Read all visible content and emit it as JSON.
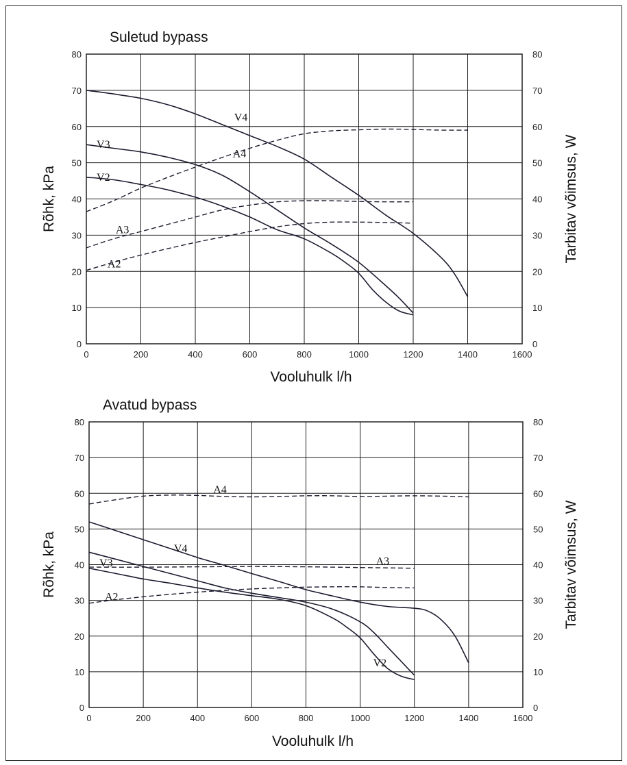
{
  "chart_data": [
    {
      "type": "line",
      "title": "Suletud bypass",
      "xlabel": "Vooluhulk  l/h",
      "ylabel": "Rõhk,  kPa",
      "ylabel_right": "Tarbitav võimsus,  W",
      "xlim": [
        0,
        1600
      ],
      "ylim": [
        0,
        80
      ],
      "ylim_right": [
        0,
        80
      ],
      "x_ticks": [
        "0",
        "200",
        "400",
        "600",
        "800",
        "1000",
        "1200",
        "1400",
        "1600"
      ],
      "y_ticks": [
        "0",
        "10",
        "20",
        "30",
        "40",
        "50",
        "60",
        "70",
        "80"
      ],
      "grid": true,
      "series": [
        {
          "name": "V4",
          "style": "solid",
          "label_at": [
            495,
            62.5
          ],
          "x": [
            0,
            100,
            200,
            300,
            400,
            500,
            600,
            700,
            800,
            900,
            1000,
            1100,
            1200,
            1300,
            1350,
            1400
          ],
          "y": [
            70,
            69,
            67.8,
            66,
            63.5,
            60.5,
            57.5,
            54.5,
            51,
            46,
            41,
            35.5,
            30.5,
            24,
            19.5,
            13
          ]
        },
        {
          "name": "V3",
          "style": "solid",
          "label_at": [
            -10,
            55
          ],
          "x": [
            0,
            100,
            200,
            300,
            400,
            500,
            600,
            700,
            800,
            900,
            1000,
            1100,
            1150,
            1200
          ],
          "y": [
            55,
            54,
            53,
            51.5,
            49.5,
            46.5,
            42,
            37,
            32,
            27.5,
            22.5,
            16,
            12.5,
            8.5
          ]
        },
        {
          "name": "V2",
          "style": "solid",
          "label_at": [
            -10,
            46
          ],
          "x": [
            0,
            100,
            200,
            300,
            400,
            500,
            600,
            700,
            800,
            900,
            950,
            1000,
            1050,
            1100,
            1150,
            1200
          ],
          "y": [
            46,
            45.3,
            44,
            42.5,
            40.5,
            38,
            35,
            31.5,
            29,
            25,
            22.5,
            19.5,
            15,
            11.5,
            9,
            8
          ]
        },
        {
          "name": "A4",
          "style": "dashed",
          "label_at": [
            490,
            52.5
          ],
          "x": [
            0,
            100,
            200,
            300,
            400,
            500,
            600,
            700,
            800,
            900,
            1000,
            1100,
            1200,
            1300,
            1400
          ],
          "y": [
            36.5,
            39.5,
            43,
            46,
            48.8,
            51.5,
            54,
            56.2,
            58,
            58.8,
            59.1,
            59.3,
            59.2,
            59,
            59
          ]
        },
        {
          "name": "A3",
          "style": "dashed",
          "label_at": [
            60,
            31.5
          ],
          "x": [
            0,
            100,
            200,
            300,
            400,
            500,
            600,
            700,
            800,
            900,
            1000,
            1100,
            1200
          ],
          "y": [
            26.5,
            29,
            31,
            33,
            35,
            37,
            38.3,
            39.2,
            39.5,
            39.5,
            39.3,
            39.2,
            39.2
          ]
        },
        {
          "name": "A2",
          "style": "dashed",
          "label_at": [
            30,
            22
          ],
          "x": [
            0,
            100,
            200,
            300,
            400,
            500,
            600,
            700,
            800,
            900,
            1000,
            1100,
            1200
          ],
          "y": [
            20.3,
            22.5,
            24.5,
            26.3,
            28,
            29.5,
            31,
            32.3,
            33.2,
            33.6,
            33.6,
            33.5,
            33.3
          ]
        }
      ]
    },
    {
      "type": "line",
      "title": "Avatud bypass",
      "xlabel": "Vooluhulk  l/h",
      "ylabel": "Rõhk,  kPa",
      "ylabel_right": "Tarbitav võimsus,  W",
      "xlim": [
        0,
        1600
      ],
      "ylim": [
        0,
        80
      ],
      "ylim_right": [
        0,
        80
      ],
      "x_ticks": [
        "0",
        "200",
        "400",
        "600",
        "800",
        "1000",
        "1200",
        "1400",
        "1600"
      ],
      "y_ticks": [
        "0",
        "10",
        "20",
        "30",
        "40",
        "50",
        "60",
        "70",
        "80"
      ],
      "grid": true,
      "series": [
        {
          "name": "A4",
          "style": "dashed",
          "label_at": [
            410,
            61
          ],
          "x": [
            0,
            100,
            200,
            300,
            400,
            500,
            600,
            700,
            800,
            900,
            1000,
            1100,
            1200,
            1300,
            1400
          ],
          "y": [
            57,
            58.2,
            59.2,
            59.5,
            59.4,
            59.1,
            59,
            59.1,
            59.3,
            59.3,
            59.1,
            59.2,
            59.3,
            59.2,
            59
          ]
        },
        {
          "name": "A3",
          "style": "dashed",
          "label_at": [
            1010,
            41
          ],
          "x": [
            0,
            200,
            400,
            600,
            800,
            1000,
            1200
          ],
          "y": [
            39.3,
            39.3,
            39.4,
            39.5,
            39.4,
            39.2,
            39
          ]
        },
        {
          "name": "A2",
          "style": "dashed",
          "label_at": [
            10,
            31
          ],
          "x": [
            0,
            100,
            200,
            300,
            400,
            500,
            600,
            700,
            800,
            900,
            1000,
            1100,
            1200
          ],
          "y": [
            29.2,
            30.2,
            31,
            31.7,
            32.3,
            32.8,
            33.2,
            33.5,
            33.7,
            33.8,
            33.8,
            33.6,
            33.5
          ]
        },
        {
          "name": "V4",
          "style": "solid",
          "label_at": [
            265,
            44.5
          ],
          "x": [
            0,
            100,
            200,
            300,
            400,
            500,
            600,
            700,
            800,
            900,
            1000,
            1100,
            1200,
            1250,
            1300,
            1350,
            1400
          ],
          "y": [
            52,
            49.5,
            47,
            44.5,
            42,
            39.8,
            37.5,
            35.3,
            33,
            31.2,
            29.5,
            28.3,
            27.8,
            27,
            24.5,
            20,
            12.5
          ]
        },
        {
          "name": "V3",
          "style": "solid",
          "label_at": [
            -10,
            40.5
          ],
          "x": [
            0,
            100,
            200,
            300,
            400,
            500,
            600,
            700,
            800,
            900,
            1000,
            1050,
            1100,
            1150,
            1200
          ],
          "y": [
            43.5,
            41.5,
            39.5,
            37.5,
            35.5,
            33.5,
            32,
            30.8,
            29.5,
            27.5,
            24,
            21,
            17,
            13,
            9
          ]
        },
        {
          "name": "V2",
          "style": "solid",
          "label_at": [
            1000,
            12.5
          ],
          "x": [
            0,
            100,
            200,
            300,
            400,
            500,
            600,
            700,
            800,
            900,
            950,
            1000,
            1050,
            1100,
            1150,
            1200
          ],
          "y": [
            39,
            37.5,
            36,
            34.8,
            33.5,
            32.3,
            31.3,
            30.3,
            28.5,
            25,
            22.5,
            19.5,
            15,
            11,
            8.8,
            7.8
          ]
        }
      ]
    }
  ]
}
